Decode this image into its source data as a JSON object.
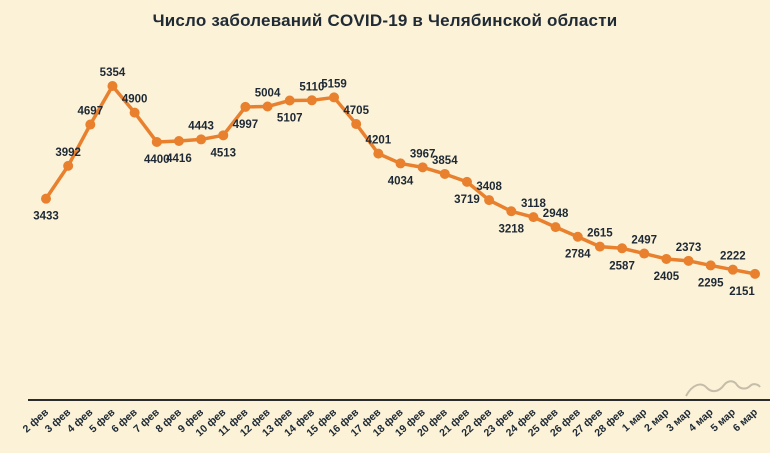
{
  "page": {
    "background_color": "#fbf2d7"
  },
  "chart_data": {
    "type": "line",
    "title": "Число заболеваний COVID-19 в Челябинской области",
    "series_name": "Число заболеваний COVID-19",
    "categories": [
      "2 фев",
      "3 фев",
      "4 фев",
      "5 фев",
      "6 фев",
      "7 фев",
      "8 фев",
      "9 фев",
      "10 фев",
      "11 фев",
      "12 фев",
      "13 фев",
      "14 фев",
      "15 фев",
      "16 фев",
      "17 фев",
      "18 фев",
      "19 фев",
      "20 фев",
      "21 фев",
      "22 фев",
      "23 фев",
      "24 фев",
      "25 фев",
      "26 фев",
      "27 фев",
      "28 фев",
      "1 мар",
      "2 мар",
      "3 мар",
      "4 мар",
      "5 мар",
      "6 мар"
    ],
    "values": [
      3433,
      3992,
      4697,
      5354,
      4900,
      4400,
      4416,
      4443,
      4513,
      4997,
      5004,
      5107,
      5110,
      5159,
      4705,
      4201,
      4034,
      3967,
      3854,
      3719,
      3408,
      3218,
      3118,
      2948,
      2784,
      2615,
      2587,
      2497,
      2405,
      2373,
      2295,
      2222,
      2151
    ],
    "label_sides": [
      "b",
      "a",
      "a",
      "a",
      "a",
      "b",
      "b",
      "a",
      "b",
      "b",
      "a",
      "b",
      "a",
      "a",
      "a",
      "a",
      "b",
      "a",
      "a",
      "b",
      "a",
      "b",
      "a",
      "a",
      "b",
      "a",
      "b",
      "a",
      "b",
      "a",
      "b",
      "a",
      "b"
    ],
    "xlabel": "",
    "ylabel": "",
    "ylim": [
      0,
      5500
    ],
    "grid": false,
    "legend": "none",
    "line_color": "#e8802e",
    "marker_color": "#e8802e",
    "label_color": "#1e2935",
    "axis_color": "#2b2b2b",
    "watermark_color": "#b3ab9a"
  }
}
